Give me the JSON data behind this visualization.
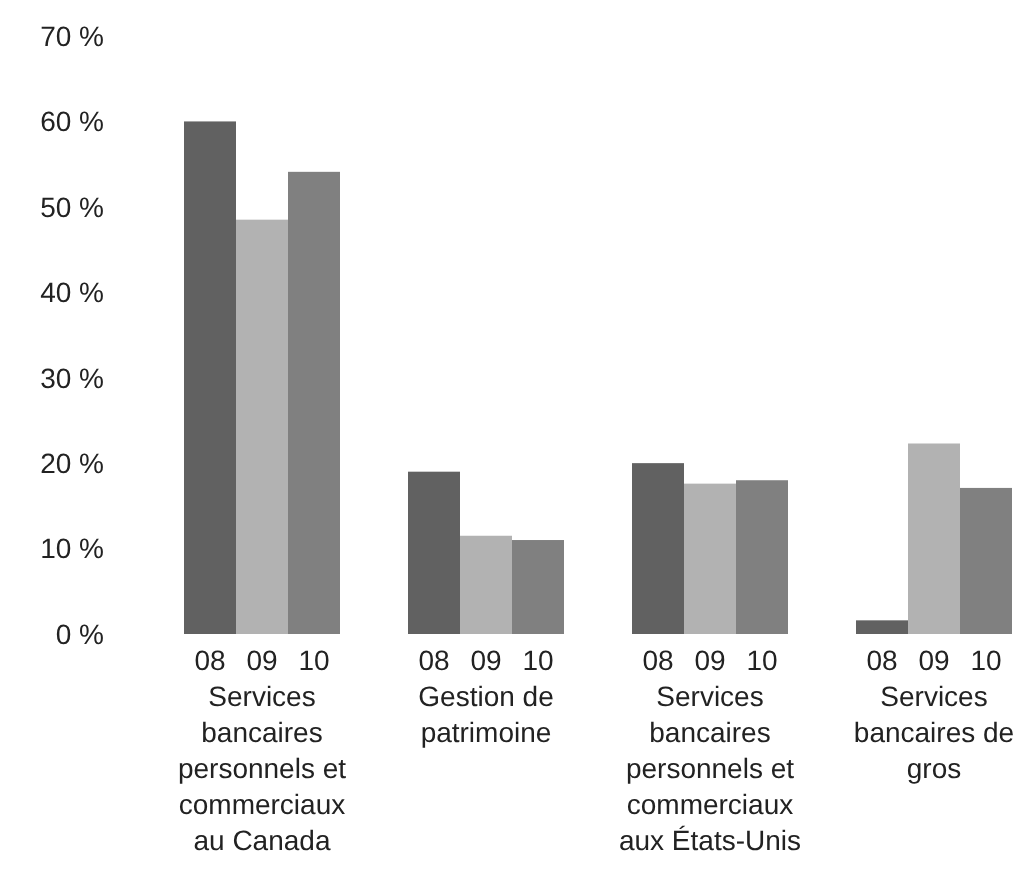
{
  "chart_data": {
    "type": "bar",
    "categories": [
      "Services bancaires personnels et commerciaux au Canada",
      "Gestion de patrimoine",
      "Services bancaires personnels et commerciaux aux États-Unis",
      "Services bancaires de gros"
    ],
    "series": [
      {
        "name": "08",
        "color": "#616161",
        "values": [
          60,
          19,
          20,
          1.6
        ]
      },
      {
        "name": "09",
        "color": "#b2b2b2",
        "values": [
          48.5,
          11.5,
          17.6,
          22.3
        ]
      },
      {
        "name": "10",
        "color": "#808080",
        "values": [
          54.1,
          11,
          18,
          17.1
        ]
      }
    ],
    "ylim": [
      0,
      70
    ],
    "yticks": [
      {
        "value": 0,
        "label": "0 %"
      },
      {
        "value": 10,
        "label": "10 %"
      },
      {
        "value": 20,
        "label": "20 %"
      },
      {
        "value": 30,
        "label": "30 %"
      },
      {
        "value": 40,
        "label": "40 %"
      },
      {
        "value": 50,
        "label": "50 %"
      },
      {
        "value": 60,
        "label": "60 %"
      },
      {
        "value": 70,
        "label": "70 %"
      }
    ],
    "grid": false,
    "legend": false
  }
}
